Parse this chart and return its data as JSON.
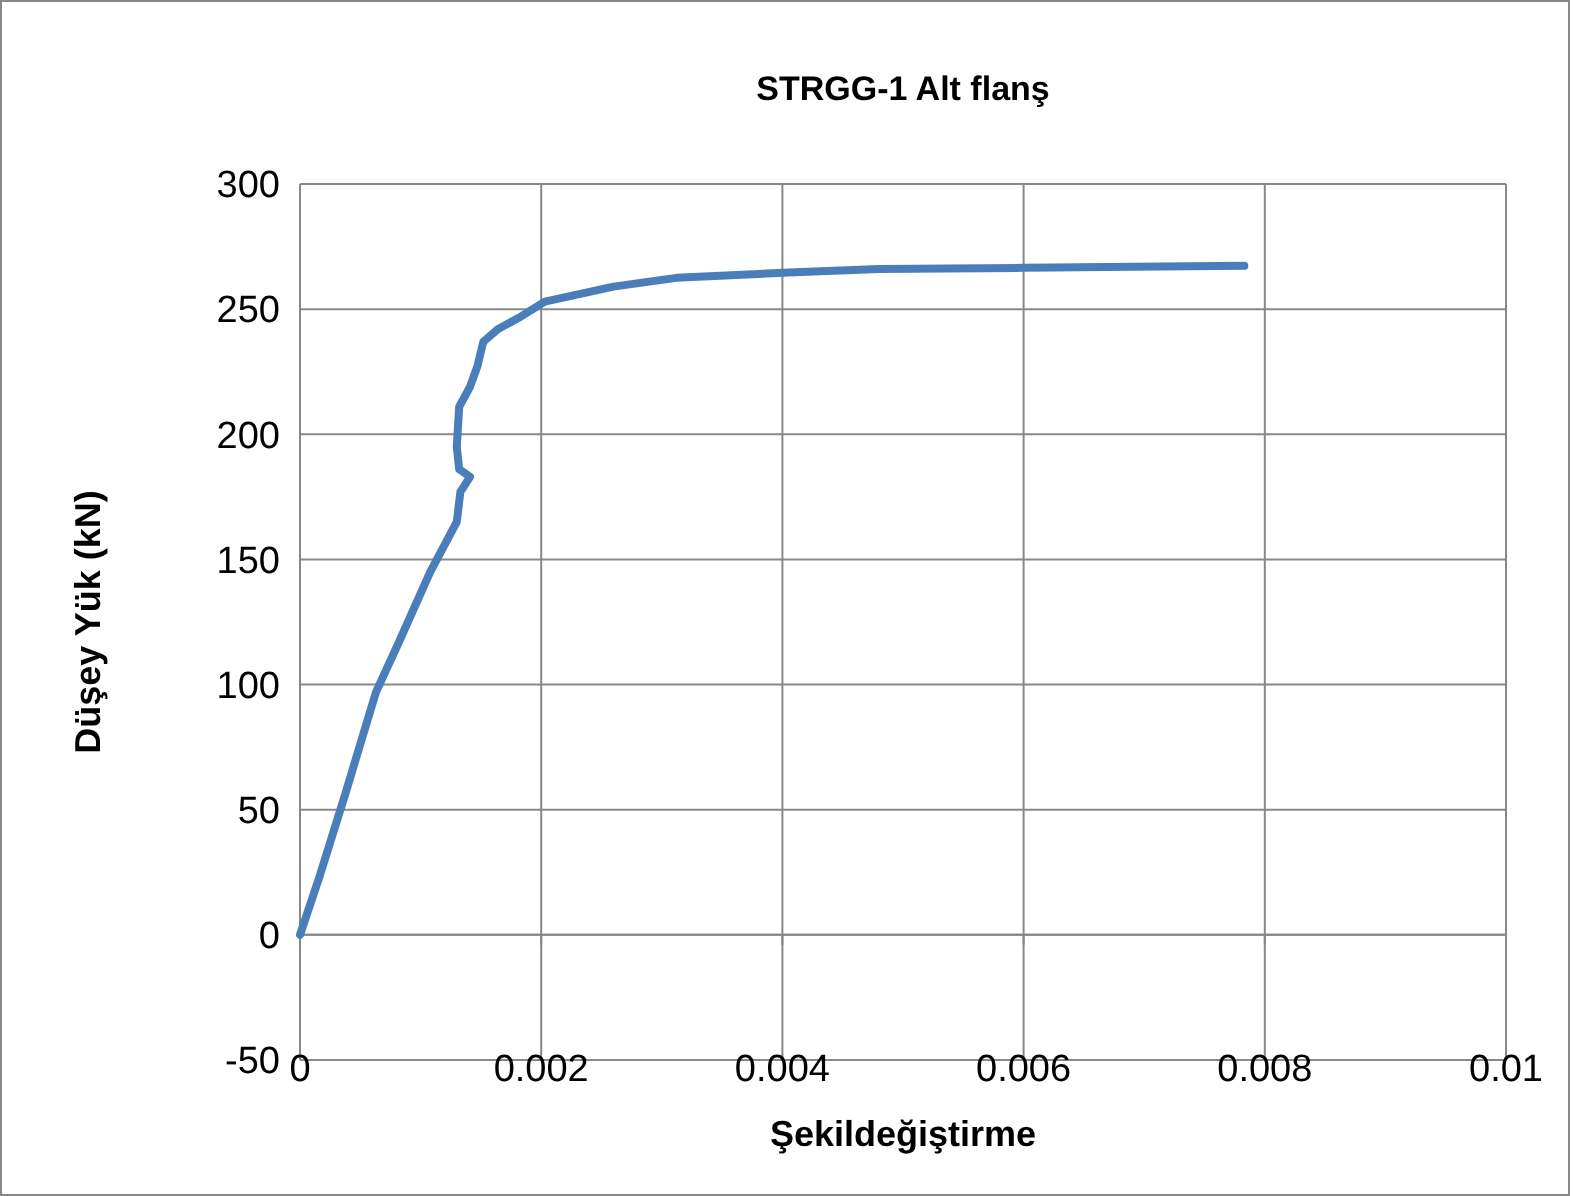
{
  "chart_data": {
    "type": "line",
    "title": "STRGG-1 Alt flanş",
    "xlabel": "Şekildeğiştirme",
    "ylabel": "Düşey Yük (kN)",
    "xlim": [
      0,
      0.01
    ],
    "xticks": [
      {
        "value": 0,
        "label": "0"
      },
      0.002,
      0.004,
      0.006,
      0.008,
      0.01
    ],
    "ylim": [
      -50,
      300
    ],
    "yticks": [
      -50,
      0,
      50,
      100,
      150,
      200,
      250,
      300
    ],
    "grid": true,
    "marker": "none",
    "line_style": "solid",
    "series": [
      {
        "color": "#4a7ebb",
        "x": [
          0,
          0.00016,
          0.00038,
          0.00063,
          0.00083,
          0.00108,
          0.0013,
          0.00133,
          0.00141,
          0.00132,
          0.0013,
          0.00132,
          0.00141,
          0.00147,
          0.00152,
          0.00164,
          0.00183,
          0.00203,
          0.0026,
          0.00312,
          0.004,
          0.0048,
          0.006,
          0.00783
        ],
        "values": [
          0,
          23,
          57,
          97,
          118,
          145,
          165,
          177,
          183,
          186,
          195,
          211,
          219,
          227,
          237,
          242,
          247,
          253,
          259,
          262.5,
          264.5,
          266,
          266.5,
          267.3
        ]
      }
    ]
  }
}
